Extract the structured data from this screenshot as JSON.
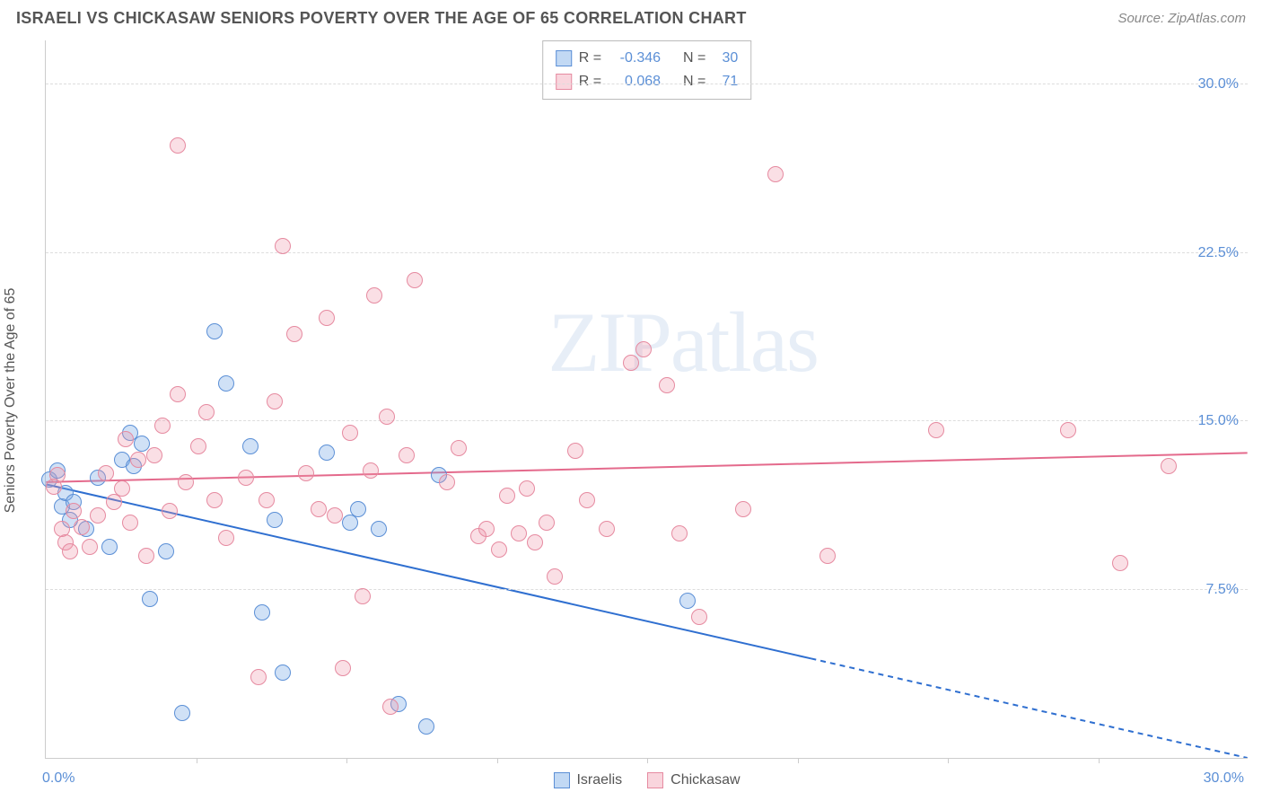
{
  "header": {
    "title": "ISRAELI VS CHICKASAW SENIORS POVERTY OVER THE AGE OF 65 CORRELATION CHART",
    "source": "Source: ZipAtlas.com"
  },
  "chart": {
    "type": "scatter",
    "ylabel": "Seniors Poverty Over the Age of 65",
    "xlim": [
      0,
      30
    ],
    "ylim": [
      0,
      32
    ],
    "xlim_labels": {
      "left": "0.0%",
      "right": "30.0%"
    },
    "yticks": [
      {
        "v": 7.5,
        "label": "7.5%"
      },
      {
        "v": 15.0,
        "label": "15.0%"
      },
      {
        "v": 22.5,
        "label": "22.5%"
      },
      {
        "v": 30.0,
        "label": "30.0%"
      }
    ],
    "xticks": [
      3.75,
      7.5,
      11.25,
      15.0,
      18.75,
      22.5,
      26.25
    ],
    "background_color": "#ffffff",
    "grid_color": "#dddddd",
    "watermark": "ZIPatlas",
    "series": [
      {
        "key": "a",
        "name": "Israelis",
        "color_fill": "rgba(120,170,230,0.35)",
        "color_border": "#5b8fd6",
        "trend": {
          "y_at_x0": 12.2,
          "y_at_xmax": 0.0,
          "solid_until_x": 19.1,
          "color": "#2f6fd0",
          "width": 2
        },
        "stats": {
          "R": "-0.346",
          "N": "30"
        },
        "points": [
          [
            0.1,
            12.4
          ],
          [
            0.3,
            12.8
          ],
          [
            0.4,
            11.2
          ],
          [
            0.5,
            11.8
          ],
          [
            0.6,
            10.6
          ],
          [
            0.7,
            11.4
          ],
          [
            1.0,
            10.2
          ],
          [
            1.3,
            12.5
          ],
          [
            1.6,
            9.4
          ],
          [
            1.9,
            13.3
          ],
          [
            2.1,
            14.5
          ],
          [
            2.2,
            13.0
          ],
          [
            2.4,
            14.0
          ],
          [
            2.6,
            7.1
          ],
          [
            3.0,
            9.2
          ],
          [
            3.4,
            2.0
          ],
          [
            4.2,
            19.0
          ],
          [
            4.5,
            16.7
          ],
          [
            5.1,
            13.9
          ],
          [
            5.4,
            6.5
          ],
          [
            5.7,
            10.6
          ],
          [
            5.9,
            3.8
          ],
          [
            7.0,
            13.6
          ],
          [
            7.6,
            10.5
          ],
          [
            7.8,
            11.1
          ],
          [
            8.3,
            10.2
          ],
          [
            8.8,
            2.4
          ],
          [
            9.5,
            1.4
          ],
          [
            9.8,
            12.6
          ],
          [
            16.0,
            7.0
          ]
        ]
      },
      {
        "key": "b",
        "name": "Chickasaw",
        "color_fill": "rgba(240,150,170,0.30)",
        "color_border": "#e68aa0",
        "trend": {
          "y_at_x0": 12.3,
          "y_at_xmax": 13.6,
          "solid_until_x": 30,
          "color": "#e46a8c",
          "width": 2
        },
        "stats": {
          "R": "0.068",
          "N": "71"
        },
        "points": [
          [
            0.2,
            12.1
          ],
          [
            0.3,
            12.6
          ],
          [
            0.4,
            10.2
          ],
          [
            0.5,
            9.6
          ],
          [
            0.6,
            9.2
          ],
          [
            0.7,
            11.0
          ],
          [
            0.9,
            10.3
          ],
          [
            1.1,
            9.4
          ],
          [
            1.3,
            10.8
          ],
          [
            1.5,
            12.7
          ],
          [
            1.7,
            11.4
          ],
          [
            1.9,
            12.0
          ],
          [
            2.0,
            14.2
          ],
          [
            2.1,
            10.5
          ],
          [
            2.3,
            13.3
          ],
          [
            2.5,
            9.0
          ],
          [
            2.7,
            13.5
          ],
          [
            2.9,
            14.8
          ],
          [
            3.1,
            11.0
          ],
          [
            3.3,
            16.2
          ],
          [
            3.3,
            27.3
          ],
          [
            3.5,
            12.3
          ],
          [
            3.8,
            13.9
          ],
          [
            4.0,
            15.4
          ],
          [
            4.2,
            11.5
          ],
          [
            4.5,
            9.8
          ],
          [
            5.0,
            12.5
          ],
          [
            5.3,
            3.6
          ],
          [
            5.5,
            11.5
          ],
          [
            5.7,
            15.9
          ],
          [
            5.9,
            22.8
          ],
          [
            6.2,
            18.9
          ],
          [
            6.5,
            12.7
          ],
          [
            6.8,
            11.1
          ],
          [
            7.0,
            19.6
          ],
          [
            7.2,
            10.8
          ],
          [
            7.4,
            4.0
          ],
          [
            7.6,
            14.5
          ],
          [
            7.9,
            7.2
          ],
          [
            8.1,
            12.8
          ],
          [
            8.2,
            20.6
          ],
          [
            8.5,
            15.2
          ],
          [
            8.6,
            2.3
          ],
          [
            9.0,
            13.5
          ],
          [
            9.2,
            21.3
          ],
          [
            10.0,
            12.3
          ],
          [
            10.3,
            13.8
          ],
          [
            10.8,
            9.9
          ],
          [
            11.0,
            10.2
          ],
          [
            11.3,
            9.3
          ],
          [
            11.5,
            11.7
          ],
          [
            11.8,
            10.0
          ],
          [
            12.0,
            12.0
          ],
          [
            12.2,
            9.6
          ],
          [
            12.5,
            10.5
          ],
          [
            12.7,
            8.1
          ],
          [
            13.2,
            13.7
          ],
          [
            13.5,
            11.5
          ],
          [
            14.0,
            10.2
          ],
          [
            14.6,
            17.6
          ],
          [
            14.9,
            18.2
          ],
          [
            15.5,
            16.6
          ],
          [
            15.8,
            10.0
          ],
          [
            16.3,
            6.3
          ],
          [
            17.4,
            11.1
          ],
          [
            18.2,
            26.0
          ],
          [
            19.5,
            9.0
          ],
          [
            22.2,
            14.6
          ],
          [
            25.5,
            14.6
          ],
          [
            26.8,
            8.7
          ],
          [
            28.0,
            13.0
          ]
        ]
      }
    ],
    "legend": {
      "items": [
        {
          "key": "a",
          "label": "Israelis"
        },
        {
          "key": "b",
          "label": "Chickasaw"
        }
      ]
    }
  }
}
